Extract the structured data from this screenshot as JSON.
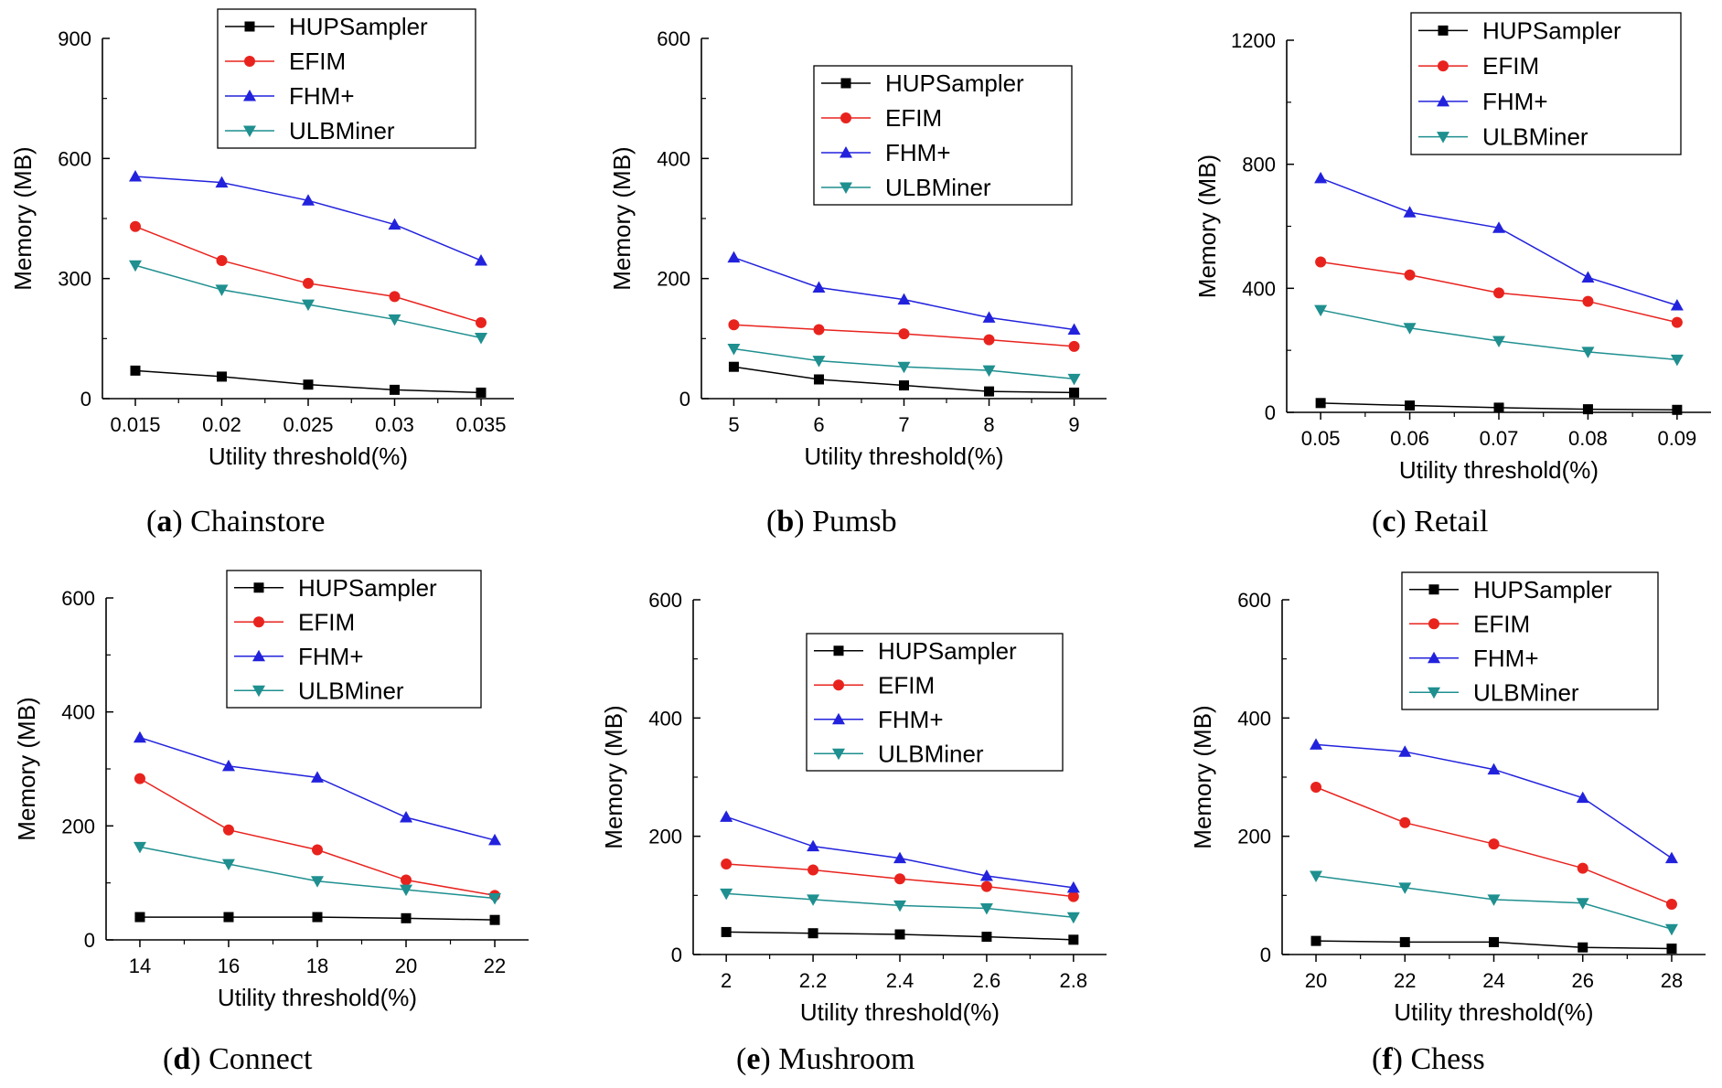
{
  "figure": {
    "captions": [
      {
        "letter": "a",
        "text": "Chainstore"
      },
      {
        "letter": "b",
        "text": "Pumsb"
      },
      {
        "letter": "c",
        "text": "Retail"
      },
      {
        "letter": "d",
        "text": "Connect"
      },
      {
        "letter": "e",
        "text": "Mushroom"
      },
      {
        "letter": "f",
        "text": "Chess"
      }
    ]
  },
  "colors": {
    "HUPSampler": "#000000",
    "EFIM": "#e8231e",
    "FHM+": "#2222dd",
    "ULBMiner": "#1f8f8f"
  },
  "chart_data": [
    {
      "type": "line",
      "title": "(a) Chainstore",
      "xlabel": "Utility threshold(%)",
      "ylabel": "Memory (MB)",
      "categories": [
        "0.015",
        "0.02",
        "0.025",
        "0.03",
        "0.035"
      ],
      "ylim": [
        0,
        900
      ],
      "yticks": [
        0,
        300,
        600,
        900
      ],
      "legend": "top",
      "series": [
        {
          "name": "HUPSampler",
          "marker": "square",
          "values": [
            70,
            55,
            35,
            22,
            15
          ]
        },
        {
          "name": "EFIM",
          "marker": "circle",
          "values": [
            430,
            345,
            288,
            255,
            190
          ]
        },
        {
          "name": "FHM+",
          "marker": "triangle-up",
          "values": [
            555,
            540,
            495,
            435,
            345
          ]
        },
        {
          "name": "ULBMiner",
          "marker": "triangle-down",
          "values": [
            333,
            272,
            235,
            198,
            152
          ]
        }
      ]
    },
    {
      "type": "line",
      "title": "(b) Pumsb",
      "xlabel": "Utility threshold(%)",
      "ylabel": "Memory (MB)",
      "categories": [
        "5",
        "6",
        "7",
        "8",
        "9"
      ],
      "ylim": [
        0,
        600
      ],
      "yticks": [
        0,
        200,
        400,
        600
      ],
      "legend": "top-right",
      "series": [
        {
          "name": "HUPSampler",
          "marker": "square",
          "values": [
            53,
            32,
            22,
            12,
            10
          ]
        },
        {
          "name": "EFIM",
          "marker": "circle",
          "values": [
            123,
            115,
            108,
            98,
            87
          ]
        },
        {
          "name": "FHM+",
          "marker": "triangle-up",
          "values": [
            235,
            185,
            165,
            135,
            115
          ]
        },
        {
          "name": "ULBMiner",
          "marker": "triangle-down",
          "values": [
            83,
            63,
            53,
            47,
            33
          ]
        }
      ]
    },
    {
      "type": "line",
      "title": "(c) Retail",
      "xlabel": "Utility threshold(%)",
      "ylabel": "Memory (MB)",
      "categories": [
        "0.05",
        "0.06",
        "0.07",
        "0.08",
        "0.09"
      ],
      "ylim": [
        0,
        1200
      ],
      "yticks": [
        0,
        400,
        800,
        1200
      ],
      "legend": "top",
      "series": [
        {
          "name": "HUPSampler",
          "marker": "square",
          "values": [
            30,
            22,
            15,
            10,
            8
          ]
        },
        {
          "name": "EFIM",
          "marker": "circle",
          "values": [
            485,
            443,
            385,
            358,
            290
          ]
        },
        {
          "name": "FHM+",
          "marker": "triangle-up",
          "values": [
            755,
            645,
            595,
            435,
            345
          ]
        },
        {
          "name": "ULBMiner",
          "marker": "triangle-down",
          "values": [
            330,
            272,
            230,
            195,
            170
          ]
        }
      ]
    },
    {
      "type": "line",
      "title": "(d) Connect",
      "xlabel": "Utility threshold(%)",
      "ylabel": "Memory (MB)",
      "categories": [
        "14",
        "16",
        "18",
        "20",
        "22"
      ],
      "ylim": [
        0,
        600
      ],
      "yticks": [
        0,
        200,
        400,
        600
      ],
      "legend": "top",
      "series": [
        {
          "name": "HUPSampler",
          "marker": "square",
          "values": [
            40,
            40,
            40,
            38,
            35
          ]
        },
        {
          "name": "EFIM",
          "marker": "circle",
          "values": [
            283,
            193,
            158,
            105,
            78
          ]
        },
        {
          "name": "FHM+",
          "marker": "triangle-up",
          "values": [
            355,
            305,
            285,
            215,
            175
          ]
        },
        {
          "name": "ULBMiner",
          "marker": "triangle-down",
          "values": [
            163,
            133,
            103,
            88,
            73
          ]
        }
      ]
    },
    {
      "type": "line",
      "title": "(e) Mushroom",
      "xlabel": "Utility threshold(%)",
      "ylabel": "Memory (MB)",
      "categories": [
        "2",
        "2.2",
        "2.4",
        "2.6",
        "2.8"
      ],
      "ylim": [
        0,
        600
      ],
      "yticks": [
        0,
        200,
        400,
        600
      ],
      "legend": "top-right",
      "series": [
        {
          "name": "HUPSampler",
          "marker": "square",
          "values": [
            38,
            36,
            34,
            30,
            25
          ]
        },
        {
          "name": "EFIM",
          "marker": "circle",
          "values": [
            153,
            143,
            128,
            115,
            98
          ]
        },
        {
          "name": "FHM+",
          "marker": "triangle-up",
          "values": [
            233,
            183,
            163,
            133,
            113
          ]
        },
        {
          "name": "ULBMiner",
          "marker": "triangle-down",
          "values": [
            103,
            93,
            83,
            78,
            63
          ]
        }
      ]
    },
    {
      "type": "line",
      "title": "(f) Chess",
      "xlabel": "Utility threshold(%)",
      "ylabel": "Memory (MB)",
      "categories": [
        "20",
        "22",
        "24",
        "26",
        "28"
      ],
      "ylim": [
        0,
        600
      ],
      "yticks": [
        0,
        200,
        400,
        600
      ],
      "legend": "top",
      "series": [
        {
          "name": "HUPSampler",
          "marker": "square",
          "values": [
            23,
            21,
            21,
            12,
            10
          ]
        },
        {
          "name": "EFIM",
          "marker": "circle",
          "values": [
            283,
            223,
            187,
            146,
            85
          ]
        },
        {
          "name": "FHM+",
          "marker": "triangle-up",
          "values": [
            355,
            343,
            313,
            265,
            163
          ]
        },
        {
          "name": "ULBMiner",
          "marker": "triangle-down",
          "values": [
            133,
            113,
            93,
            87,
            43
          ]
        }
      ]
    }
  ]
}
